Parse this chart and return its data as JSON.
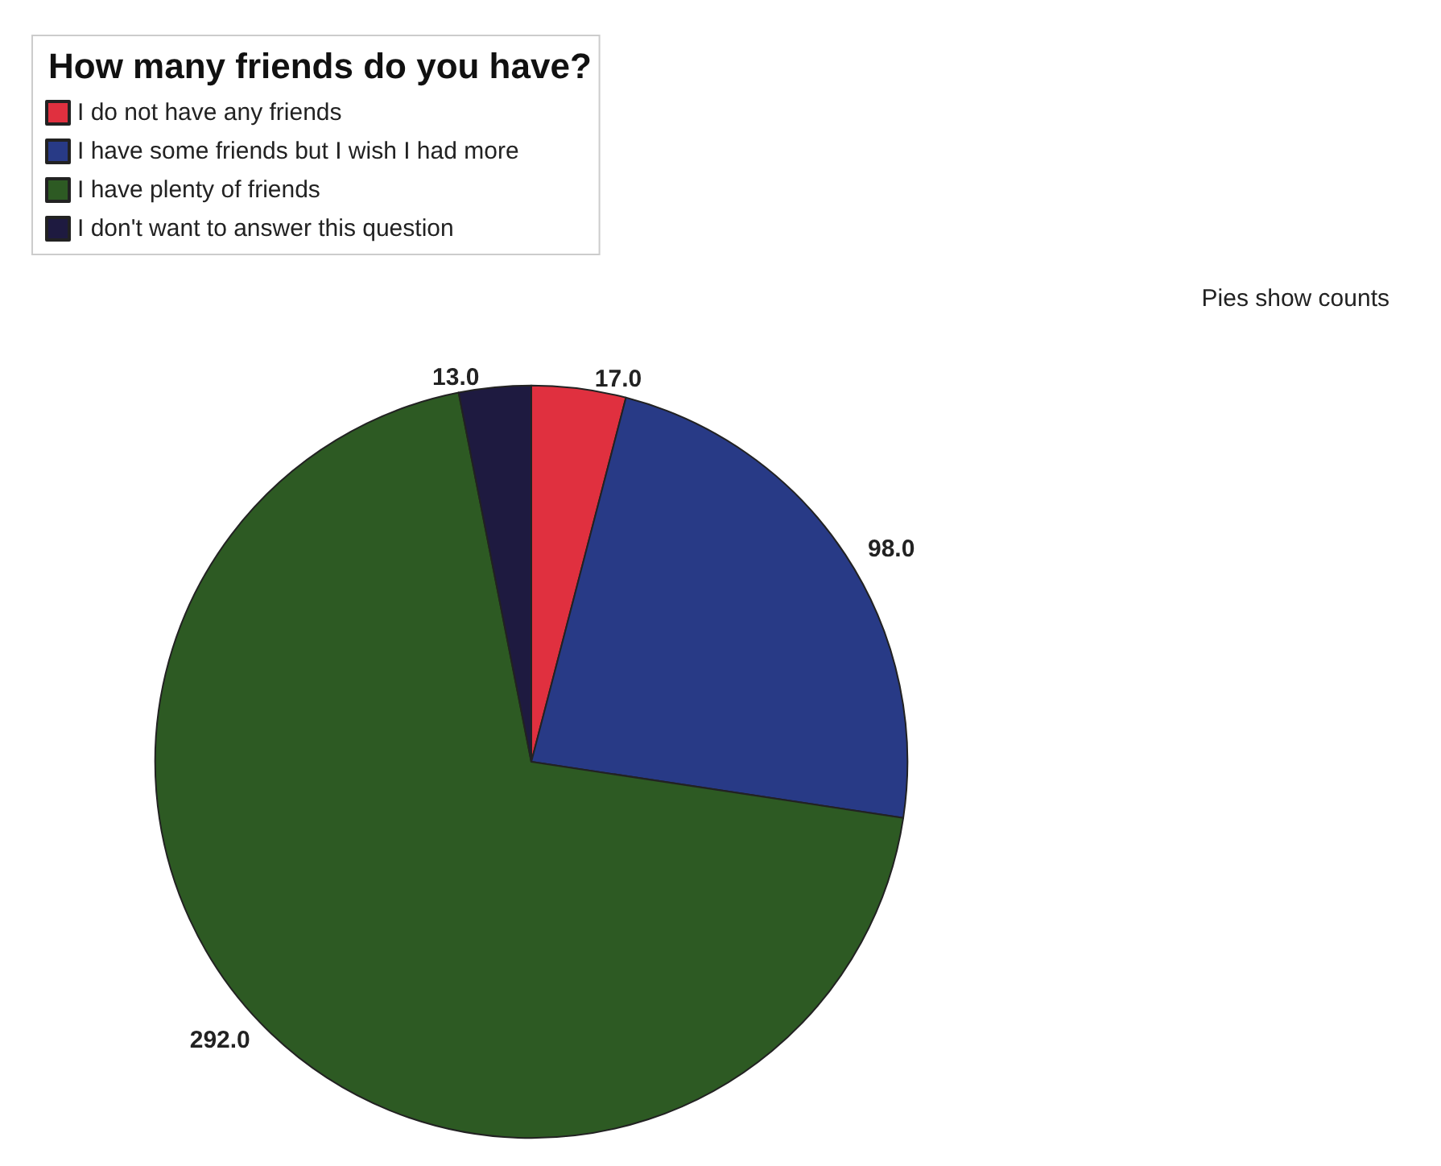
{
  "chart_data": {
    "type": "pie",
    "legend_title": "How many friends do you have?",
    "categories": [
      "I do not have any friends",
      "I have some friends but I wish I had more",
      "I have plenty of friends",
      "I don't want to answer this question"
    ],
    "values": [
      17,
      98,
      292,
      13
    ],
    "value_labels": [
      "17.0",
      "98.0",
      "292.0",
      "13.0"
    ],
    "colors": [
      "#e0303f",
      "#283a86",
      "#2d5a23",
      "#1e1a40"
    ],
    "legend": "top left",
    "annotations": [
      "Pies show counts"
    ]
  }
}
